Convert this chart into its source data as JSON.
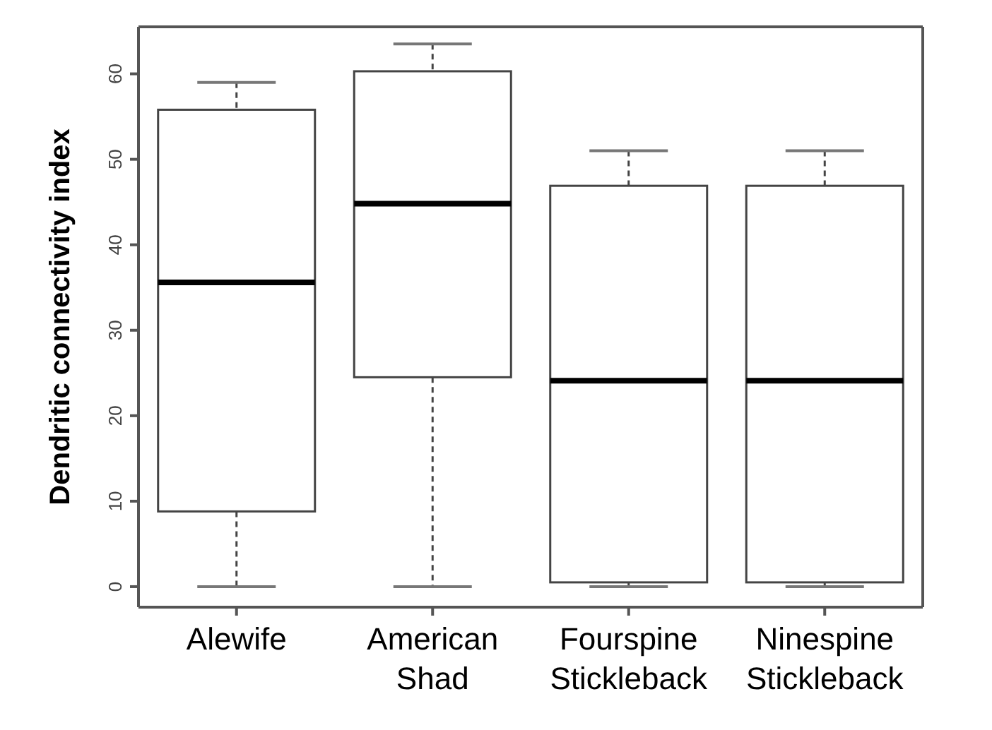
{
  "chart_data": {
    "type": "box",
    "ylabel": "Dendritic connectivity index",
    "categories": [
      "Alewife",
      "American Shad",
      "Fourspine Stickleback",
      "Ninespine Stickleback"
    ],
    "boxes": [
      {
        "low": 0,
        "q1": 8.8,
        "median": 35.6,
        "q3": 55.8,
        "high": 59
      },
      {
        "low": 0,
        "q1": 24.5,
        "median": 44.8,
        "q3": 60.3,
        "high": 63.5
      },
      {
        "low": 0,
        "q1": 0.5,
        "median": 24.1,
        "q3": 46.9,
        "high": 51
      },
      {
        "low": 0,
        "q1": 0.5,
        "median": 24.1,
        "q3": 46.9,
        "high": 51
      }
    ],
    "ylim": [
      -2.4,
      65.5
    ],
    "yticks": [
      0,
      10,
      20,
      30,
      40,
      50,
      60
    ],
    "grid": false
  }
}
